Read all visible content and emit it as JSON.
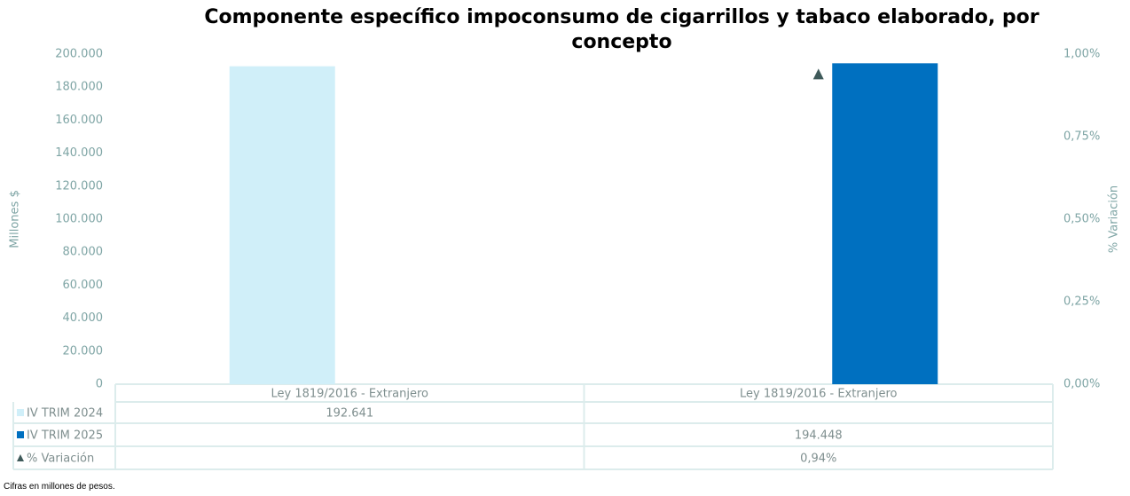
{
  "chart_data": {
    "type": "bar",
    "title": "Componente específico impoconsumo de cigarrillos y tabaco elaborado, por concepto",
    "y_label": "Millones $",
    "y2_label": "% Variación",
    "categories": [
      "Ley 1819/2016 - Extranjero",
      "Ley 1819/2016 - Extranjero"
    ],
    "series": [
      {
        "name": "IV TRIM 2024",
        "color": "#d0eff9",
        "values": [
          192641,
          null
        ],
        "value_labels": [
          "192.641",
          null
        ]
      },
      {
        "name": "IV TRIM 2025",
        "color": "#0070c0",
        "values": [
          null,
          194448
        ],
        "value_labels": [
          null,
          "194.448"
        ]
      },
      {
        "name": "% Variación",
        "color": "#3f5a5a",
        "type": "scatter",
        "axis": "y2",
        "values": [
          null,
          0.94
        ],
        "value_labels": [
          null,
          "0,94%"
        ]
      }
    ],
    "ylim": [
      0,
      200000
    ],
    "yticks": [
      0,
      {
        "value": 20000,
        "label": "20.000"
      },
      {
        "value": 40000,
        "label": "40.000"
      },
      {
        "value": 60000,
        "label": "60.000"
      },
      {
        "value": 80000,
        "label": "80.000"
      },
      {
        "value": 100000,
        "label": "100.000"
      },
      {
        "value": 120000,
        "label": "120.000"
      },
      {
        "value": 140000,
        "label": "140.000"
      },
      {
        "value": 160000,
        "label": "160.000"
      },
      {
        "value": 180000,
        "label": "180.000"
      },
      {
        "value": 200000,
        "label": "200.000"
      }
    ],
    "y2lim": [
      0,
      1
    ],
    "y2ticks": [
      {
        "value": 0,
        "label": "0,00%"
      },
      {
        "value": 0.25,
        "label": "0,25%"
      },
      {
        "value": 0.5,
        "label": "0,50%"
      },
      {
        "value": 0.75,
        "label": "0,75%"
      },
      {
        "value": 1,
        "label": "1,00%"
      }
    ],
    "note": "Cifras en millones de pesos."
  }
}
